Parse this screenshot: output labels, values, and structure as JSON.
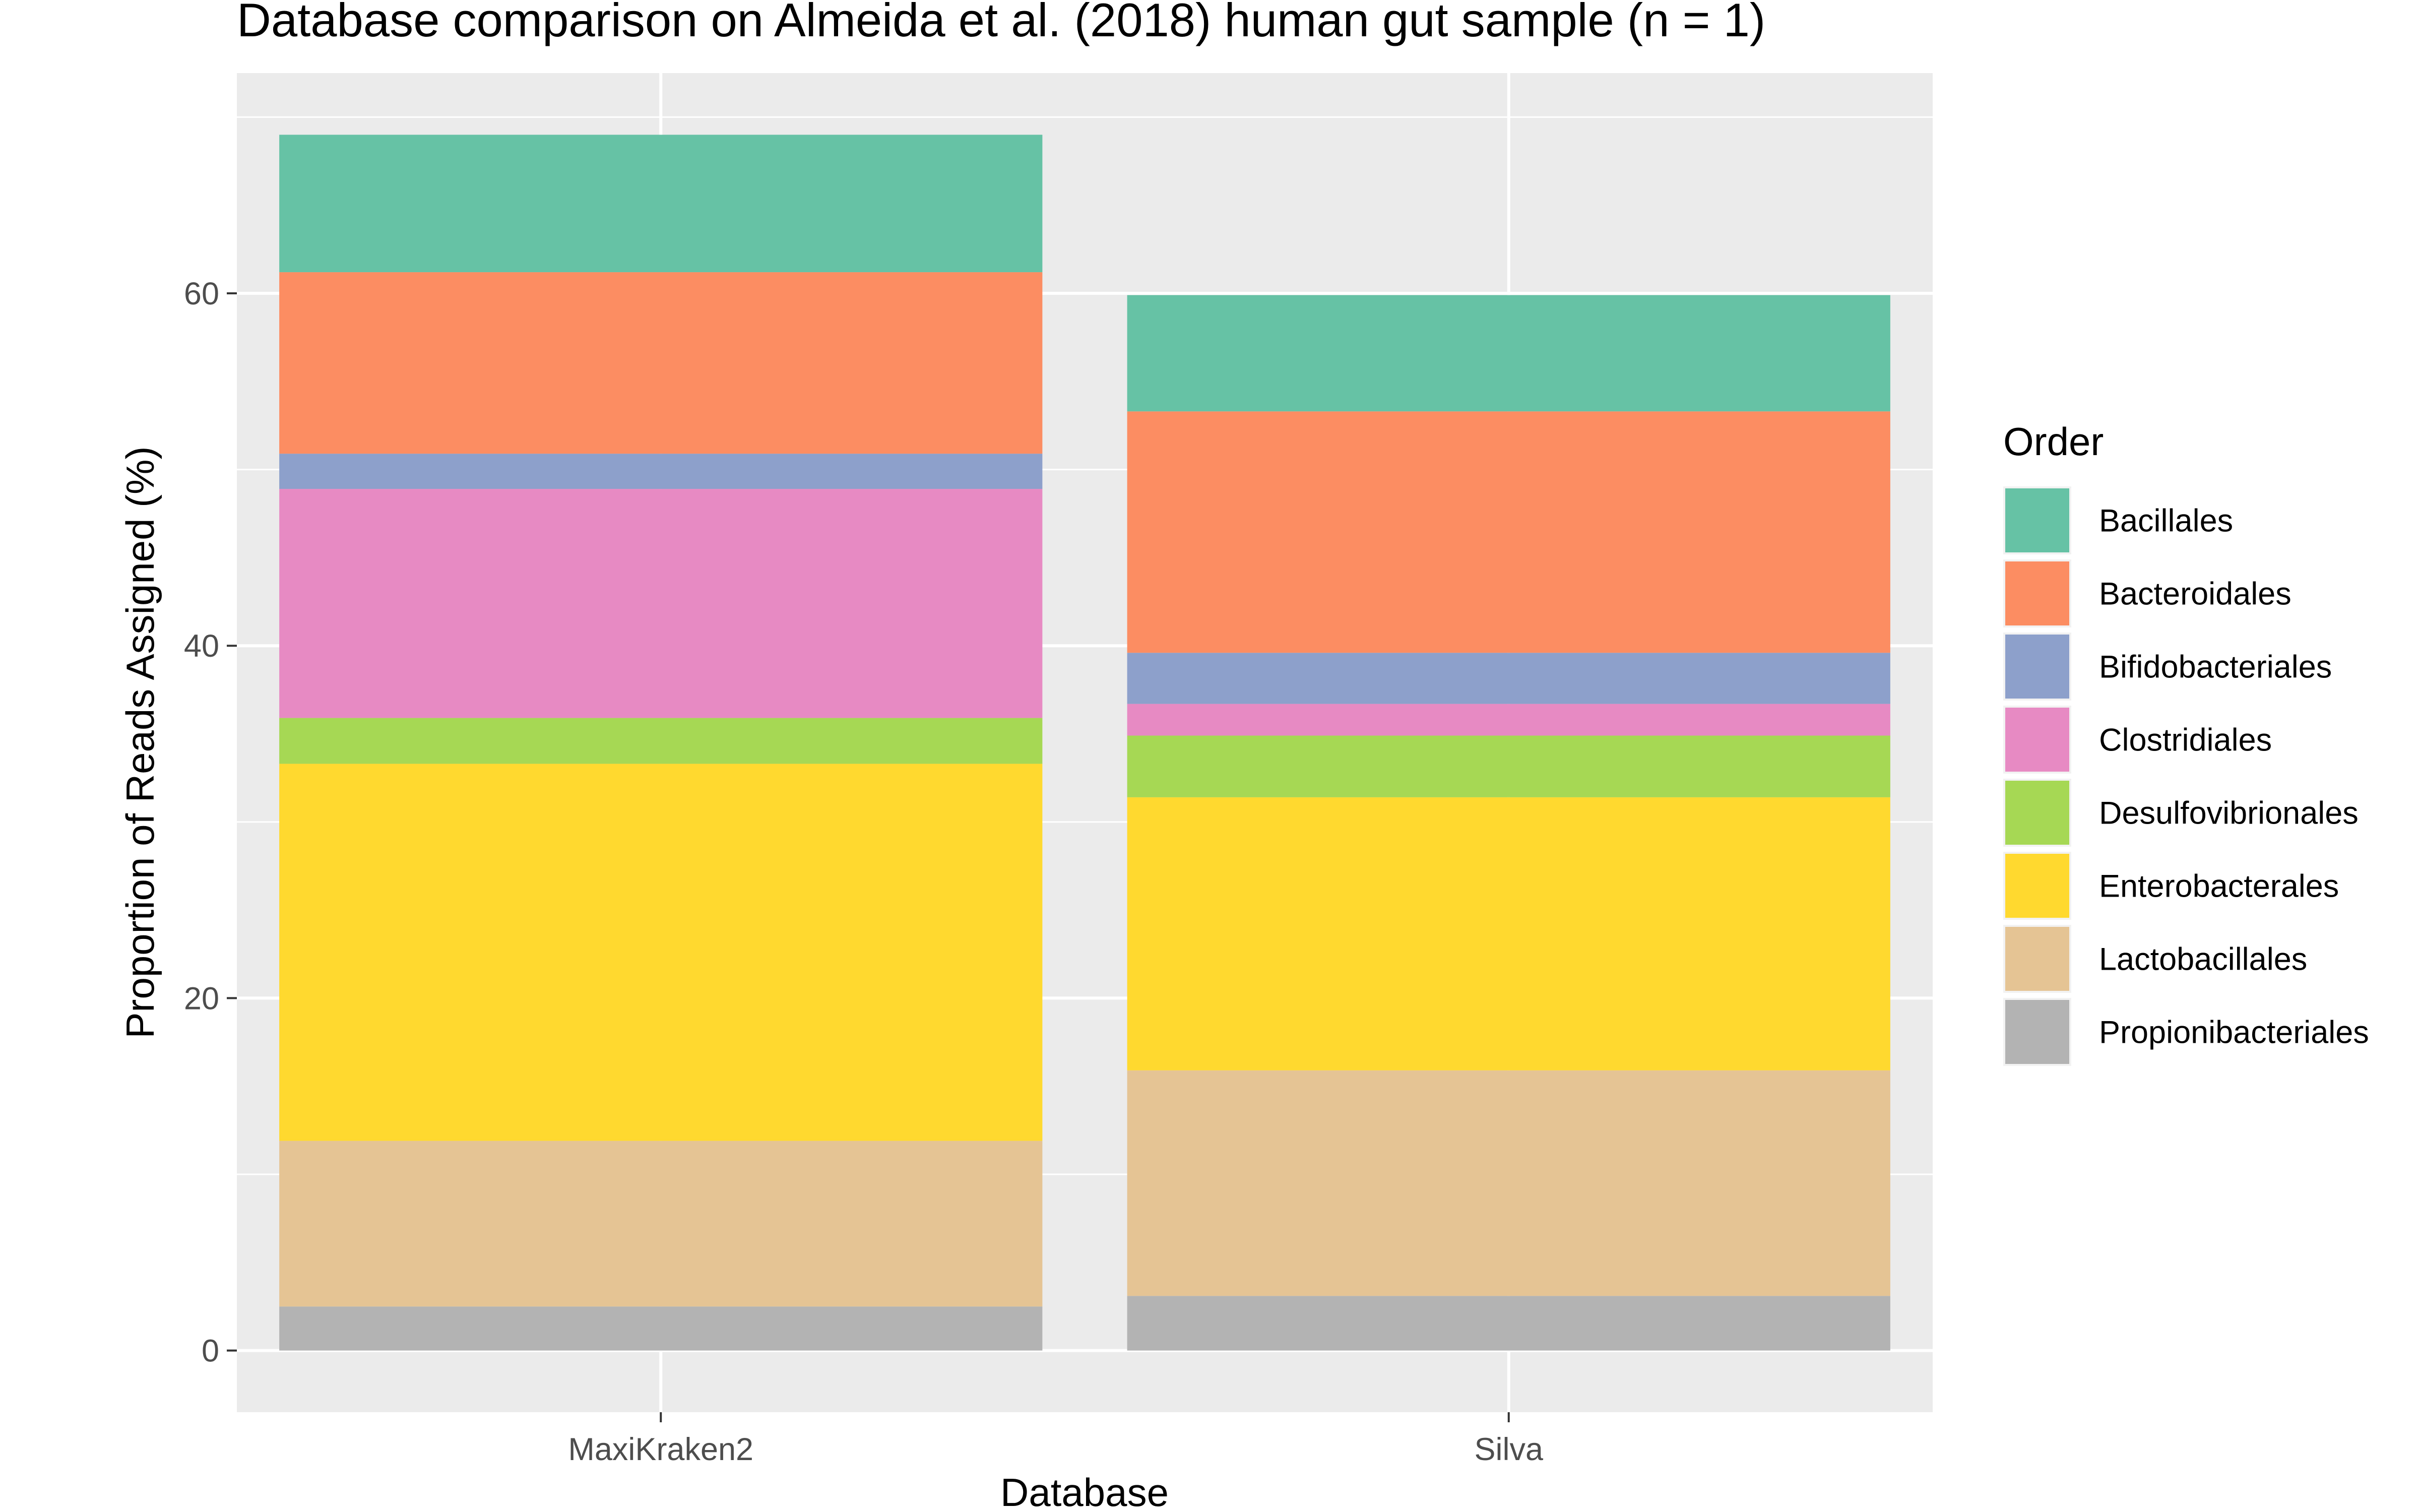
{
  "chart_data": {
    "type": "bar",
    "stacked": true,
    "title": "Database comparison on Almeida et al. (2018) human gut sample (n = 1)",
    "xlabel": "Database",
    "ylabel": "Proportion of Reads Assigned (%)",
    "categories": [
      "MaxiKraken2",
      "Silva"
    ],
    "ylim": [
      -3.5,
      72.5
    ],
    "yticks": [
      0,
      20,
      40,
      60
    ],
    "grid": true,
    "legend": {
      "title": "Order",
      "position": "right"
    },
    "series": [
      {
        "name": "Propionibacteriales",
        "color": "#B3B3B3",
        "values": [
          2.5,
          3.1
        ]
      },
      {
        "name": "Lactobacillales",
        "color": "#E5C494",
        "values": [
          9.4,
          12.8
        ]
      },
      {
        "name": "Enterobacterales",
        "color": "#FFD92F",
        "values": [
          21.4,
          15.5
        ]
      },
      {
        "name": "Desulfovibrionales",
        "color": "#A6D854",
        "values": [
          2.6,
          3.5
        ]
      },
      {
        "name": "Clostridiales",
        "color": "#E78AC3",
        "values": [
          13.0,
          1.8
        ]
      },
      {
        "name": "Bifidobacteriales",
        "color": "#8DA0CB",
        "values": [
          2.0,
          2.9
        ]
      },
      {
        "name": "Bacteroidales",
        "color": "#FC8D62",
        "values": [
          10.3,
          13.7
        ]
      },
      {
        "name": "Bacillales",
        "color": "#66C2A5",
        "values": [
          7.8,
          6.6
        ]
      }
    ],
    "legend_order": [
      "Bacillales",
      "Bacteroidales",
      "Bifidobacteriales",
      "Clostridiales",
      "Desulfovibrionales",
      "Enterobacterales",
      "Lactobacillales",
      "Propionibacteriales"
    ]
  }
}
